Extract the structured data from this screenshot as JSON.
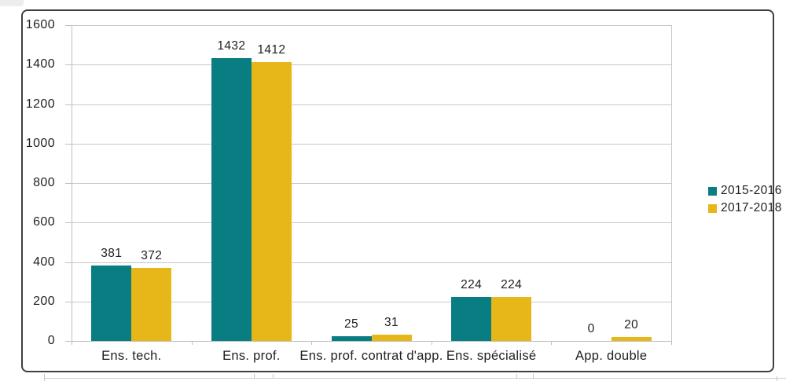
{
  "chart_data": {
    "type": "bar",
    "title": "",
    "xlabel": "",
    "ylabel": "",
    "categories": [
      "Ens. tech.",
      "Ens. prof.",
      "Ens. prof. contrat d'app.",
      "Ens. spécialisé",
      "App. double"
    ],
    "series": [
      {
        "name": "2015-2016",
        "color": "#087E82",
        "values": [
          381,
          1432,
          25,
          224,
          0
        ]
      },
      {
        "name": "2017-2018",
        "color": "#E7B618",
        "values": [
          372,
          1412,
          31,
          224,
          20
        ]
      }
    ],
    "ylim": [
      0,
      1600
    ],
    "yticks": [
      0,
      200,
      400,
      600,
      800,
      1000,
      1200,
      1400,
      1600
    ],
    "grid": true,
    "data_labels": true,
    "legend_position": "right"
  },
  "legend": {
    "items": [
      {
        "label": "2015-2016",
        "swatch_color": "#087E82"
      },
      {
        "label": "2017-2018",
        "swatch_color": "#E7B618"
      }
    ]
  },
  "colors": {
    "grid": "#c8c8c8",
    "axis": "#bfbfbf",
    "frame_border": "#3f3f42",
    "text": "#1f1f1f",
    "background": "#ffffff"
  }
}
